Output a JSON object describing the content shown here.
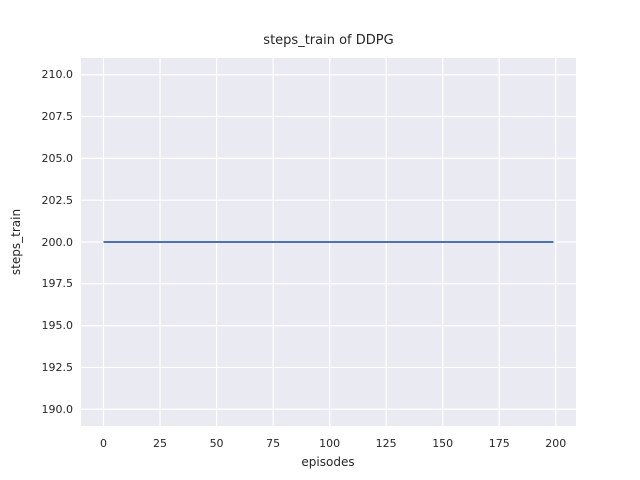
{
  "figure": {
    "background": "#ffffff"
  },
  "chart_data": {
    "type": "line",
    "title": "steps_train of DDPG",
    "xlabel": "episodes",
    "ylabel": "steps_train",
    "plot_background": "#eaeaf2",
    "gridline_color": "#ffffff",
    "text_color": "#262626",
    "grid": true,
    "legend": false,
    "xlim": [
      -9.95,
      208.95
    ],
    "ylim": [
      189,
      211
    ],
    "x_ticks": [
      {
        "value": 0,
        "label": "0"
      },
      {
        "value": 25,
        "label": "25"
      },
      {
        "value": 50,
        "label": "50"
      },
      {
        "value": 75,
        "label": "75"
      },
      {
        "value": 100,
        "label": "100"
      },
      {
        "value": 125,
        "label": "125"
      },
      {
        "value": 150,
        "label": "150"
      },
      {
        "value": 175,
        "label": "175"
      },
      {
        "value": 200,
        "label": "200"
      }
    ],
    "y_ticks": [
      {
        "value": 190.0,
        "label": "190.0"
      },
      {
        "value": 192.5,
        "label": "192.5"
      },
      {
        "value": 195.0,
        "label": "195.0"
      },
      {
        "value": 197.5,
        "label": "197.5"
      },
      {
        "value": 200.0,
        "label": "200.0"
      },
      {
        "value": 202.5,
        "label": "202.5"
      },
      {
        "value": 205.0,
        "label": "205.0"
      },
      {
        "value": 207.5,
        "label": "207.5"
      },
      {
        "value": 210.0,
        "label": "210.0"
      }
    ],
    "series": [
      {
        "name": "steps_train",
        "color": "#4c72b0",
        "line_width": 2,
        "description": "constant training steps of 200 per episode across all 200 episodes (x = 0 to 199)",
        "x": [
          0,
          199
        ],
        "y": [
          200,
          200
        ]
      }
    ]
  }
}
